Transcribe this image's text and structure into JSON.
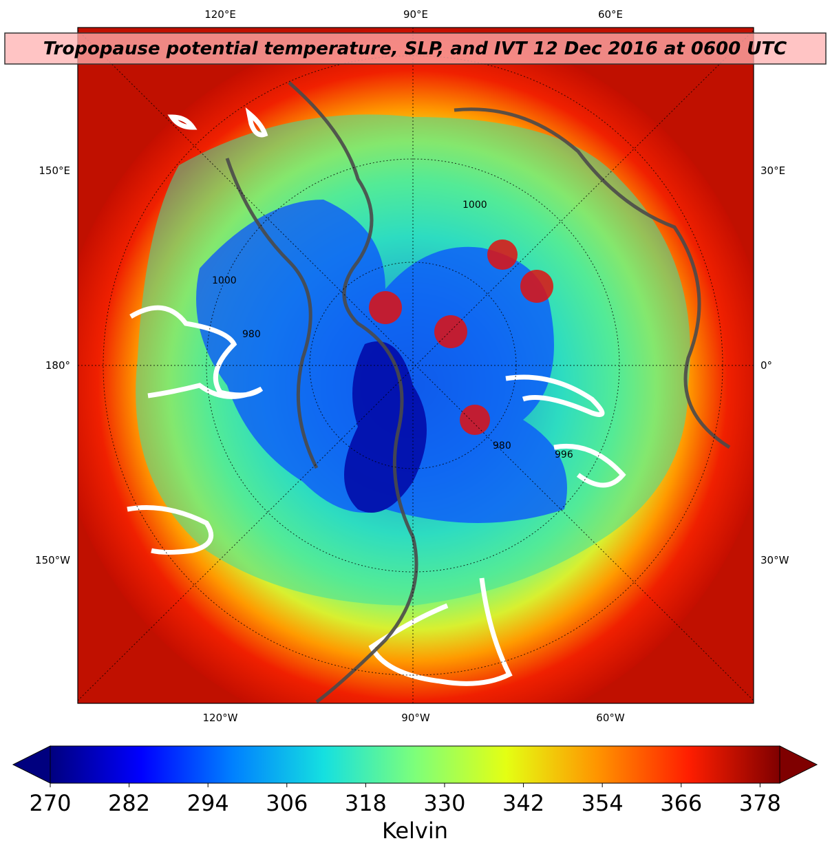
{
  "title": "Tropopause potential temperature, SLP, and IVT 12 Dec 2016 at 0600 UTC",
  "longitude_labels": {
    "top": [
      "120°E",
      "90°E",
      "60°E"
    ],
    "left": [
      "150°E",
      "180°",
      "150°W"
    ],
    "right": [
      "30°E",
      "0°",
      "30°W"
    ],
    "bottom": [
      "120°W",
      "90°W",
      "60°W"
    ]
  },
  "contour_labels": [
    "1000",
    "980",
    "996",
    "1000",
    "980"
  ],
  "colorbar": {
    "range": [
      270,
      381
    ],
    "ticks": [
      270,
      282,
      294,
      306,
      318,
      330,
      342,
      354,
      366,
      378
    ],
    "label": "Kelvin",
    "colors": [
      "#00007f",
      "#0000ff",
      "#0080ff",
      "#15e0e0",
      "#7dff7a",
      "#e4ff13",
      "#ff9400",
      "#ff1e00",
      "#7f0000"
    ]
  }
}
